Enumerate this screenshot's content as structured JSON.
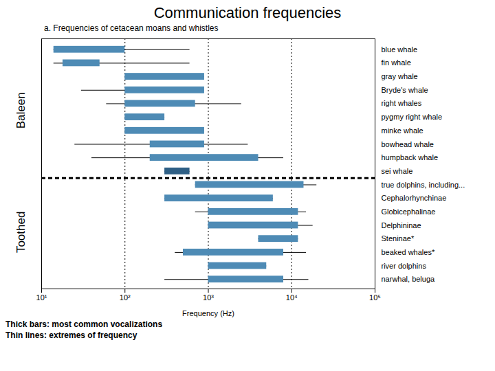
{
  "chart_data": {
    "type": "range",
    "orientation": "horizontal",
    "title": "Communication frequencies",
    "subtitle": "a. Frequencies of cetacean moans and whistles",
    "xlabel": "Frequency (Hz)",
    "log": "x",
    "xlim": [
      10,
      100000
    ],
    "xticks": [
      {
        "value": 10,
        "label": "10¹"
      },
      {
        "value": 100,
        "label": "10²"
      },
      {
        "value": 1000,
        "label": "10³"
      },
      {
        "value": 10000,
        "label": "10⁴"
      },
      {
        "value": 100000,
        "label": "10⁵"
      }
    ],
    "vlines": [
      100,
      1000,
      10000
    ],
    "categories": [
      "blue whale",
      "fin whale",
      "gray whale",
      "Bryde's whale",
      "right whales",
      "pygmy right whale",
      "minke whale",
      "bowhead whale",
      "humpback whale",
      "sei whale",
      "true dolphins, including...",
      "Cephalorhynchinae",
      "Globicephalinae",
      "Delphininae",
      "Steninae*",
      "beaked whales*",
      "river dolphins",
      "narwhal, beluga"
    ],
    "group": [
      "Baleen",
      "Baleen",
      "Baleen",
      "Baleen",
      "Baleen",
      "Baleen",
      "Baleen",
      "Baleen",
      "Baleen",
      "Baleen",
      "Toothed",
      "Toothed",
      "Toothed",
      "Toothed",
      "Toothed",
      "Toothed",
      "Toothed",
      "Toothed"
    ],
    "bar_ranges": [
      [
        14,
        100
      ],
      [
        18,
        50
      ],
      [
        100,
        900
      ],
      [
        100,
        900
      ],
      [
        100,
        700
      ],
      [
        100,
        300
      ],
      [
        100,
        900
      ],
      [
        200,
        900
      ],
      [
        200,
        4000
      ],
      [
        300,
        600
      ],
      [
        700,
        14000
      ],
      [
        300,
        6000
      ],
      [
        1000,
        12000
      ],
      [
        1000,
        12000
      ],
      [
        4000,
        12000
      ],
      [
        500,
        8000
      ],
      [
        1000,
        5000
      ],
      [
        1000,
        8000
      ]
    ],
    "line_ranges": [
      [
        14,
        600
      ],
      [
        14,
        600
      ],
      [
        100,
        900
      ],
      [
        30,
        900
      ],
      [
        60,
        2500
      ],
      [
        100,
        300
      ],
      [
        100,
        900
      ],
      [
        25,
        3000
      ],
      [
        40,
        8000
      ],
      [
        300,
        600
      ],
      [
        700,
        20000
      ],
      [
        300,
        6000
      ],
      [
        700,
        15000
      ],
      [
        1000,
        18000
      ],
      [
        4000,
        12000
      ],
      [
        400,
        15000
      ],
      [
        1000,
        5000
      ],
      [
        300,
        16000
      ]
    ],
    "colors": [
      "#4e8bb5",
      "#4e8bb5",
      "#4e8bb5",
      "#4e8bb5",
      "#4e8bb5",
      "#4e8bb5",
      "#4e8bb5",
      "#4e8bb5",
      "#4e8bb5",
      "#2e5f85",
      "#4e8bb5",
      "#4e8bb5",
      "#4e8bb5",
      "#4e8bb5",
      "#4e8bb5",
      "#4e8bb5",
      "#4e8bb5",
      "#4e8bb5"
    ],
    "notes": [
      "Thick bars: most common vocalizations",
      "Thin lines: extremes of frequency"
    ]
  }
}
